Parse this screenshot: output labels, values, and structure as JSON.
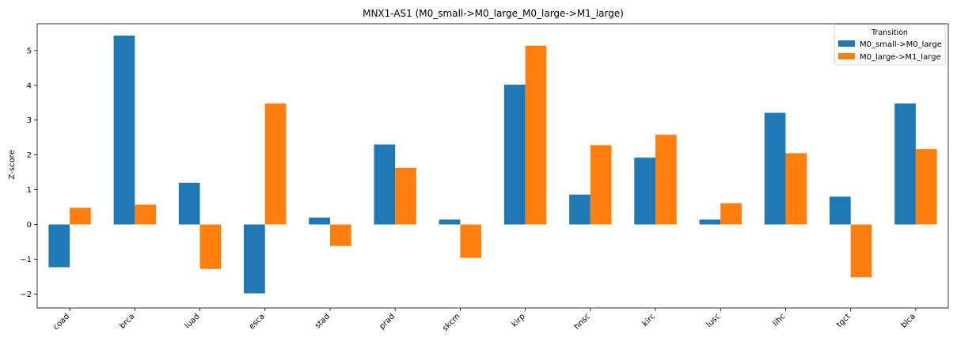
{
  "chart_data": {
    "type": "bar",
    "title": "MNX1-AS1 (M0_small->M0_large_M0_large->M1_large)",
    "xlabel": "",
    "ylabel": "Z-score",
    "categories": [
      "coad",
      "brca",
      "luad",
      "esca",
      "stad",
      "prad",
      "skcm",
      "kirp",
      "hnsc",
      "kirc",
      "lusc",
      "lihc",
      "tgct",
      "blca"
    ],
    "series": [
      {
        "name": "M0_small->M0_large",
        "color": "#1f77b4",
        "values": [
          -1.23,
          5.43,
          1.2,
          -1.98,
          0.2,
          2.3,
          0.14,
          4.02,
          0.86,
          1.92,
          0.14,
          3.21,
          0.8,
          3.48
        ]
      },
      {
        "name": "M0_large->M1_large",
        "color": "#ff7f0e",
        "values": [
          0.48,
          0.57,
          -1.28,
          3.48,
          -0.62,
          1.63,
          -0.96,
          5.14,
          2.28,
          2.58,
          0.61,
          2.05,
          -1.52,
          2.17
        ]
      }
    ],
    "ylim": [
      -2.4,
      5.77
    ],
    "yticks": [
      -2,
      -1,
      0,
      1,
      2,
      3,
      4,
      5
    ],
    "grid": false,
    "legend": {
      "title": "Transition",
      "placement": "top-right"
    }
  }
}
